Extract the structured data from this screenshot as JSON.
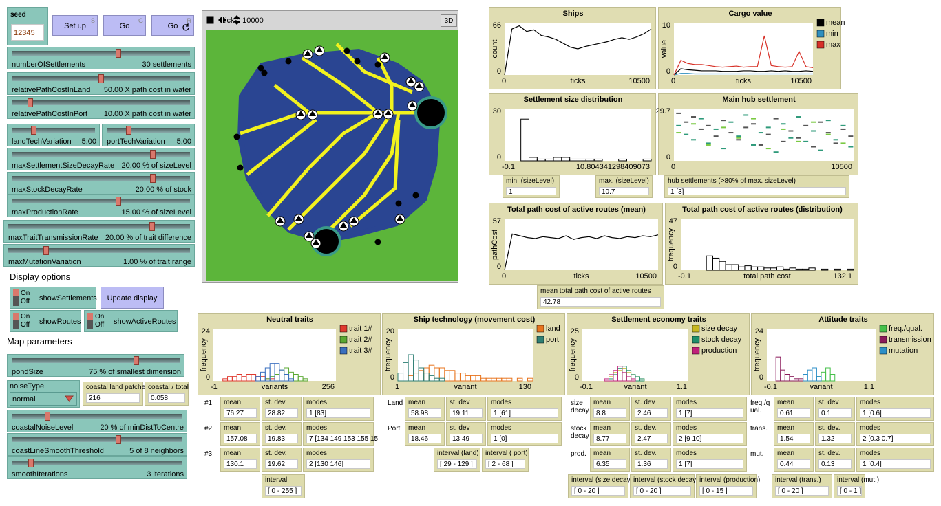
{
  "seed": {
    "label": "seed",
    "value": "12345"
  },
  "buttons": [
    {
      "label": "Set up",
      "key": "S"
    },
    {
      "label": "Go",
      "key": "G"
    },
    {
      "label": "Go",
      "key": "R"
    }
  ],
  "sliders": [
    {
      "name": "numberOfSettlements",
      "value": "30 settlements"
    },
    {
      "name": "relativePathCostInLand",
      "value": "50.00 X path cost in water"
    },
    {
      "name": "relativePathCostInPort",
      "value": "10.00 X path cost in water"
    },
    {
      "name": "landTechVariation",
      "value": "5.00"
    },
    {
      "name": "portTechVariation",
      "value": "5.00"
    },
    {
      "name": "maxSettlementSizeDecayRate",
      "value": "20.00 % of sizeLevel"
    },
    {
      "name": "maxStockDecayRate",
      "value": "20.00 % of stock"
    },
    {
      "name": "maxProductionRate",
      "value": "15.00 % of sizeLevel"
    },
    {
      "name": "maxTraitTransmissionRate",
      "value": "20.00 % of trait difference"
    },
    {
      "name": "maxMutationVariation",
      "value": "1.00 % of trait range"
    }
  ],
  "world": {
    "ticks": "ticks: 10000",
    "button_3d": "3D"
  },
  "display_options": {
    "heading": "Display options",
    "update_button": "Update display",
    "switches": [
      {
        "name": "showSettlements",
        "on": "On",
        "off": "Off"
      },
      {
        "name": "showRoutes",
        "on": "On",
        "off": "Off"
      },
      {
        "name": "showActiveRoutes",
        "on": "On",
        "off": "Off"
      }
    ]
  },
  "map_parameters": {
    "heading": "Map parameters",
    "sliders": [
      {
        "name": "pondSize",
        "value": "75 % of smallest dimension"
      },
      {
        "name": "coastalNoiseLevel",
        "value": "20 % of minDistToCentre"
      },
      {
        "name": "coastLineSmoothThreshold",
        "value": "5 of 8 neighbors"
      },
      {
        "name": "smoothIterations",
        "value": "3 iterations"
      }
    ],
    "chooser": {
      "label": "noiseType",
      "value": "normal"
    },
    "monitors": [
      {
        "label": "coastal land patches",
        "value": 216
      },
      {
        "label": "coastal / total",
        "value": 0.058
      }
    ]
  },
  "monitors": [
    {
      "label": "min. (sizeLevel)",
      "value": 1
    },
    {
      "label": "max. (sizeLevel)",
      "value": 10.7
    },
    {
      "label": "hub settlements (>80% of max. sizeLevel)",
      "value": "1 [3]"
    },
    {
      "label": "mean total path cost of active routes",
      "value": 42.78
    }
  ],
  "plots": [
    {
      "title": "Ships",
      "kind": "line",
      "xlabel": "ticks",
      "ylabel": "count",
      "xticks": [
        0,
        10500
      ],
      "yticks": [
        0,
        66
      ],
      "series": [
        {
          "color": "#000000",
          "values": [
            0,
            58,
            62,
            55,
            57,
            50,
            48,
            45,
            40,
            35,
            33,
            36,
            38,
            40,
            42,
            45,
            47,
            45,
            48,
            52,
            58
          ]
        }
      ]
    },
    {
      "title": "Cargo value",
      "kind": "line",
      "xlabel": "ticks",
      "ylabel": "value",
      "xticks": [
        0,
        10500
      ],
      "yticks": [
        0,
        10
      ],
      "legend": true,
      "series": [
        {
          "name": "mean",
          "color": "#000000",
          "values": [
            0,
            1.2,
            1,
            0.9,
            0.8,
            0.8,
            0.8,
            0.7,
            0.7,
            0.7,
            0.8,
            0.8,
            0.7,
            0.7,
            0.8,
            0.7,
            0.8,
            0.7,
            0.7,
            0.8,
            0.7
          ]
        },
        {
          "name": "min",
          "color": "#2f8fbf",
          "values": [
            0,
            0.3,
            0.3,
            0.2,
            0.2,
            0.2,
            0.2,
            0.2,
            0.2,
            0.2,
            0.2,
            0.2,
            0.2,
            0.2,
            0.2,
            0.2,
            0.2,
            0.2,
            0.2,
            0.2,
            0.2
          ]
        },
        {
          "name": "max",
          "color": "#d73027",
          "values": [
            0,
            2.8,
            2.2,
            2,
            2,
            1.8,
            1.6,
            1.5,
            1.6,
            1.7,
            1.5,
            1.6,
            1.6,
            7.5,
            1.8,
            1.6,
            1.5,
            1.6,
            4.5,
            1.6,
            1.4
          ]
        }
      ]
    },
    {
      "title": "Settlement size distribution",
      "kind": "hist",
      "xticks": [
        -0.1,
        10.804341298409073
      ],
      "yticks": [
        0,
        30
      ],
      "series": [
        {
          "color": "#000000",
          "values": [
            0,
            0,
            24,
            2,
            1,
            1,
            2,
            2,
            1,
            1,
            1,
            1,
            0,
            0,
            1,
            0,
            0,
            1
          ]
        }
      ]
    },
    {
      "title": "Main hub settlement",
      "kind": "dots",
      "xticks": [
        0,
        10500
      ],
      "yticks": [
        0,
        29.7
      ],
      "series": [
        {
          "color": "#555555",
          "values": [
            27,
            22,
            25,
            18,
            20,
            14,
            23,
            16,
            12,
            19,
            21,
            9,
            15,
            24,
            11,
            17,
            13,
            20,
            8,
            22,
            16,
            10,
            18,
            14
          ]
        },
        {
          "color": "#2e9a7a",
          "values": [
            20,
            15,
            12,
            24,
            10,
            18,
            7,
            22,
            14,
            26,
            9,
            16,
            19,
            5,
            21,
            13,
            25,
            11,
            17,
            6,
            23,
            12,
            20,
            8
          ]
        },
        {
          "color": "#7ac943",
          "values": [
            16,
            null,
            21,
            null,
            9,
            null,
            19,
            null,
            13,
            null,
            24,
            null,
            7,
            null,
            18,
            null,
            11,
            null,
            22,
            null,
            15,
            null,
            10,
            null
          ]
        }
      ]
    },
    {
      "title": "Total path cost of active routes (mean)",
      "kind": "line",
      "xlabel": "ticks",
      "ylabel": "pathCost",
      "xticks": [
        0,
        10500
      ],
      "yticks": [
        0,
        57
      ],
      "series": [
        {
          "color": "#000000",
          "values": [
            0,
            40,
            38,
            36,
            35,
            37,
            36,
            35,
            38,
            34,
            36,
            37,
            35,
            38,
            36,
            35,
            37,
            36,
            38,
            37,
            39
          ]
        }
      ]
    },
    {
      "title": "Total path cost of active routes (distribution)",
      "kind": "hist",
      "xlabel": "total path cost",
      "ylabel": "frequency",
      "xticks": [
        -0.1,
        132.1
      ],
      "yticks": [
        0,
        47
      ],
      "series": [
        {
          "color": "#000000",
          "values": [
            0,
            0,
            0,
            0,
            13,
            11,
            8,
            5,
            5,
            3,
            4,
            3,
            3,
            2,
            2,
            3,
            1,
            2,
            1,
            1,
            2,
            0,
            1,
            0,
            1,
            0,
            1
          ]
        }
      ]
    },
    {
      "title": "Neutral traits",
      "kind": "hist",
      "xlabel": "variants",
      "ylabel": "frequency",
      "xticks": [
        -1,
        256
      ],
      "yticks": [
        0,
        24
      ],
      "legend": true,
      "series": [
        {
          "name": "trait 1#",
          "color": "#e03a2f",
          "values": [
            0,
            0,
            1,
            2,
            2,
            3,
            2,
            3,
            3,
            2,
            2,
            1,
            1,
            0,
            0,
            0,
            0,
            0,
            0,
            0,
            0,
            0,
            0,
            0,
            0,
            0
          ]
        },
        {
          "name": "trait 2#",
          "color": "#5aa832",
          "values": [
            0,
            0,
            0,
            0,
            0,
            0,
            0,
            0,
            0,
            0,
            0,
            1,
            2,
            3,
            5,
            6,
            4,
            3,
            2,
            1,
            0,
            0,
            0,
            0,
            0,
            0
          ]
        },
        {
          "name": "trait 3#",
          "color": "#3a6fbf",
          "values": [
            0,
            0,
            0,
            0,
            0,
            0,
            0,
            0,
            0,
            2,
            4,
            6,
            8,
            8,
            5,
            3,
            1,
            0,
            0,
            0,
            0,
            0,
            0,
            0,
            0,
            0
          ]
        }
      ]
    },
    {
      "title": "Ship technology (movement cost)",
      "kind": "hist",
      "xlabel": "variant",
      "ylabel": "frequency",
      "xticks": [
        1,
        130
      ],
      "yticks": [
        0,
        20
      ],
      "legend": true,
      "series": [
        {
          "name": "land",
          "color": "#e8741e",
          "values": [
            0,
            0,
            2,
            3,
            4,
            5,
            6,
            5,
            5,
            4,
            4,
            3,
            3,
            2,
            2,
            2,
            1,
            1,
            1,
            1,
            1,
            1,
            0,
            1,
            0,
            1
          ]
        },
        {
          "name": "port",
          "color": "#2e7f74",
          "values": [
            3,
            7,
            10,
            8,
            5,
            3,
            2,
            1,
            1,
            0,
            0,
            0,
            0,
            0,
            0,
            0,
            0,
            0,
            0,
            0,
            0,
            0,
            0,
            0,
            0,
            0
          ]
        }
      ]
    },
    {
      "title": "Settlement economy traits",
      "kind": "hist",
      "xlabel": "variant",
      "ylabel": "frequency",
      "xticks": [
        -0.1,
        1.1
      ],
      "yticks": [
        0,
        25
      ],
      "legend": true,
      "series": [
        {
          "name": "size decay",
          "color": "#c8b820",
          "values": [
            0,
            0,
            0,
            0,
            0,
            0,
            2,
            4,
            5,
            6,
            4,
            3,
            2,
            1,
            0,
            0,
            0,
            0,
            0,
            0,
            0,
            0,
            0,
            0
          ]
        },
        {
          "name": "stock decay",
          "color": "#1f8f6a",
          "values": [
            0,
            0,
            0,
            0,
            0,
            0,
            1,
            3,
            6,
            7,
            5,
            3,
            2,
            1,
            0,
            0,
            0,
            0,
            0,
            0,
            0,
            0,
            0,
            0
          ]
        },
        {
          "name": "production",
          "color": "#c0207a",
          "values": [
            0,
            0,
            0,
            0,
            0,
            1,
            3,
            5,
            7,
            4,
            2,
            1,
            0,
            0,
            0,
            0,
            0,
            0,
            0,
            0,
            0,
            0,
            0,
            0
          ]
        }
      ]
    },
    {
      "title": "Attitude traits",
      "kind": "hist",
      "xlabel": "variant",
      "ylabel": "frequency",
      "xticks": [
        -0.1,
        1.1
      ],
      "yticks": [
        0,
        24
      ],
      "legend": true,
      "series": [
        {
          "name": "freq./qual.",
          "color": "#45c04a",
          "values": [
            0,
            0,
            0,
            0,
            0,
            0,
            0,
            0,
            0,
            0,
            0,
            2,
            4,
            6,
            3,
            0,
            0,
            0,
            0,
            0,
            0,
            0,
            0,
            0
          ]
        },
        {
          "name": "transmission",
          "color": "#8a1a5a",
          "values": [
            0,
            0,
            11,
            5,
            3,
            2,
            1,
            1,
            0,
            0,
            0,
            0,
            0,
            0,
            0,
            0,
            0,
            0,
            0,
            0,
            0,
            0,
            0,
            0
          ]
        },
        {
          "name": "mutation",
          "color": "#2c8fc8",
          "values": [
            0,
            0,
            0,
            0,
            0,
            0,
            0,
            0,
            3,
            5,
            6,
            2,
            0,
            0,
            0,
            0,
            0,
            0,
            0,
            0,
            0,
            0,
            0,
            0
          ]
        }
      ]
    }
  ],
  "trait_panels": [
    {
      "row_labels": [
        "#1",
        "#2",
        "#3"
      ],
      "monitors": [
        [
          {
            "label": "mean",
            "value": 76.27
          },
          {
            "label": "st. dev",
            "value": 28.82
          },
          {
            "label": "modes",
            "value": "1 [83]"
          }
        ],
        [
          {
            "label": "mean",
            "value": 157.08
          },
          {
            "label": "st. dev.",
            "value": 19.83
          },
          {
            "label": "modes",
            "value": "7 [134 149 153 155 15"
          }
        ],
        [
          {
            "label": "mean",
            "value": 130.1
          },
          {
            "label": "st. dev.",
            "value": 19.62
          },
          {
            "label": "modes",
            "value": "2 [130 146]"
          }
        ]
      ],
      "intervals": [
        {
          "label": "interval",
          "value": "[ 0 - 255 ]"
        }
      ]
    },
    {
      "row_labels": [
        "Land",
        "Port"
      ],
      "monitors": [
        [
          {
            "label": "mean",
            "value": 58.98
          },
          {
            "label": "st. dev",
            "value": 19.11
          },
          {
            "label": "modes",
            "value": "1 [61]"
          }
        ],
        [
          {
            "label": "mean",
            "value": 18.46
          },
          {
            "label": "st. dev",
            "value": 13.49
          },
          {
            "label": "modes",
            "value": "1 [0]"
          }
        ]
      ],
      "intervals": [
        {
          "label": "interval (land)",
          "value": "[ 29 - 129 ]"
        },
        {
          "label": "interval ( port)",
          "value": "[ 2 - 68 ]"
        }
      ]
    },
    {
      "row_labels": [
        "size decay",
        "stock decay",
        "prod."
      ],
      "monitors": [
        [
          {
            "label": "mean",
            "value": 8.8
          },
          {
            "label": "st. dev",
            "value": 2.46
          },
          {
            "label": "modes",
            "value": "1 [7]"
          }
        ],
        [
          {
            "label": "mean",
            "value": 8.77
          },
          {
            "label": "st. dev.",
            "value": 2.47
          },
          {
            "label": "modes",
            "value": "2 [9 10]"
          }
        ],
        [
          {
            "label": "mean",
            "value": 6.35
          },
          {
            "label": "st. dev.",
            "value": 1.36
          },
          {
            "label": "modes",
            "value": "1 [7]"
          }
        ]
      ],
      "intervals": [
        {
          "label": "interval (size decay)",
          "value": "[ 0 - 20 ]"
        },
        {
          "label": "interval (stock decay)",
          "value": "[ 0 - 20 ]"
        },
        {
          "label": "interval (production)",
          "value": "[ 0 - 15 ]"
        }
      ]
    },
    {
      "row_labels": [
        "freq./qual.",
        "trans.",
        "mut."
      ],
      "monitors": [
        [
          {
            "label": "mean",
            "value": 0.61
          },
          {
            "label": "st. dev",
            "value": 0.1
          },
          {
            "label": "modes",
            "value": "1 [0.6]"
          }
        ],
        [
          {
            "label": "mean",
            "value": 1.54
          },
          {
            "label": "st. dev.",
            "value": 1.32
          },
          {
            "label": "modes",
            "value": "2 [0.3 0.7]"
          }
        ],
        [
          {
            "label": "mean",
            "value": 0.44
          },
          {
            "label": "st. dev.",
            "value": 0.13
          },
          {
            "label": "modes",
            "value": "1 [0.4]"
          }
        ]
      ],
      "intervals": [
        {
          "label": "interval (trans.)",
          "value": "[ 0 - 20 ]"
        },
        {
          "label": "interval (mut.)",
          "value": "[ 0 - 1 ]"
        }
      ]
    }
  ]
}
